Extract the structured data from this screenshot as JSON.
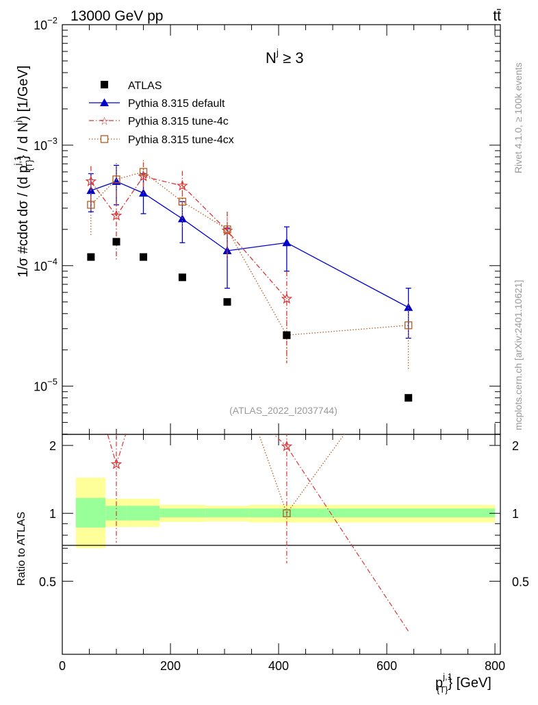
{
  "chart_data": {
    "type": "scatter",
    "header": {
      "left": "13000 GeV pp",
      "right": "tt̄"
    },
    "panel_label": {
      "text": "N",
      "superscript": "j",
      "condition": " ≥ 3"
    },
    "ylabel": {
      "prefix": "1/σ #cdot dσ / (d p",
      "sup": "j,1",
      "sub": "{T}",
      "suffix": "} / d N",
      "sup2": "j",
      "units": ") [1/GeV]"
    },
    "xlabel": {
      "base": "p",
      "sup": "j,1",
      "sub": "{T}",
      "units": "} [GeV]"
    },
    "ratio_ylabel": "Ratio to ATLAS",
    "side_text_upper": "Rivet 4.1.0, ≥ 100k events",
    "side_text_lower": "mcplots.cern.ch [arXiv:2401.10621]",
    "analysis_label": "(ATLAS_2022_I2037744)",
    "x_range": [
      0,
      810
    ],
    "y_range_log": [
      -5.4,
      -2
    ],
    "x_ticks": [
      0,
      200,
      400,
      600,
      800
    ],
    "y_ticks": [
      {
        "mantissa": "10",
        "exp": "−2",
        "value": 0.01
      },
      {
        "mantissa": "10",
        "exp": "−3",
        "value": 0.001
      },
      {
        "mantissa": "10",
        "exp": "−4",
        "value": 0.0001
      },
      {
        "mantissa": "10",
        "exp": "−5",
        "value": 1e-05
      }
    ],
    "ratio_range_log": [
      -0.625,
      0.35
    ],
    "ratio_ticks": [
      "0.5",
      "1",
      "2"
    ],
    "bins": [
      {
        "lo": 25,
        "hi": 80
      },
      {
        "lo": 80,
        "hi": 120
      },
      {
        "lo": 120,
        "hi": 180
      },
      {
        "lo": 180,
        "hi": 265
      },
      {
        "lo": 265,
        "hi": 345
      },
      {
        "lo": 345,
        "hi": 485
      },
      {
        "lo": 485,
        "hi": 800
      }
    ],
    "atlas": {
      "name": "ATLAS",
      "x": [
        53,
        100,
        150,
        222,
        305,
        415,
        640
      ],
      "y": [
        0.000118,
        0.000158,
        0.000118,
        8e-05,
        5e-05,
        2.65e-05,
        8e-06
      ]
    },
    "series": [
      {
        "name": "Pythia 8.315 default",
        "color": "#0000cc",
        "marker": "triangle",
        "dash": "",
        "x": [
          53,
          100,
          150,
          222,
          305,
          415,
          640
        ],
        "y": [
          0.00042,
          0.0005,
          0.0004,
          0.000245,
          0.000133,
          0.000155,
          4.5e-05
        ],
        "err_lo": [
          0.00028,
          0.00032,
          0.00027,
          0.000155,
          6.5e-05,
          9e-05,
          2.5e-05
        ],
        "err_hi": [
          0.00058,
          0.00068,
          0.00058,
          0.00034,
          0.000205,
          0.00021,
          6.5e-05
        ]
      },
      {
        "name": "Pythia 8.315 tune-4c",
        "color": "#dd3333",
        "marker": "star",
        "dash": "7,3,1.5,3",
        "x": [
          53,
          100,
          150,
          222,
          305,
          415,
          640
        ],
        "y": [
          0.0005,
          0.00026,
          0.00055,
          0.00046,
          0.000195,
          5.3e-05,
          null
        ],
        "err_lo": [
          0.00031,
          0.00011,
          0.0004,
          0.00031,
          0.00011,
          1.55e-05,
          null
        ],
        "err_hi": [
          0.00067,
          0.00041,
          0.00072,
          0.00061,
          0.00028,
          9e-05,
          null
        ],
        "ratio_offscale": [
          true,
          false,
          true,
          true,
          true,
          false,
          true
        ],
        "ratio_x": [
          100,
          415
        ],
        "ratio_y": [
          1.65,
          1.98
        ],
        "ratio_err_lo": [
          0.74,
          0.6
        ],
        "ratio_err_hi": [
          2.3,
          2.3
        ]
      },
      {
        "name": "Pythia 8.315 tune-4cx",
        "color": "#b35c1e",
        "marker": "open-square",
        "dash": "1.5,2.5",
        "x": [
          53,
          100,
          150,
          222,
          305,
          415,
          640
        ],
        "y": [
          0.00032,
          0.00052,
          0.0006,
          0.00034,
          0.0002,
          2.65e-05,
          3.2e-05
        ],
        "err_lo": [
          0.000175,
          0.00033,
          0.00045,
          0.00021,
          0.00012,
          1.55e-05,
          1.35e-05
        ],
        "err_hi": [
          0.00047,
          0.00071,
          0.00075,
          0.00047,
          0.00028,
          3.75e-05,
          5e-05
        ],
        "ratio_x": [
          415
        ],
        "ratio_y": [
          1.0
        ]
      }
    ],
    "ratio_bands": [
      {
        "inner": [
          0.865,
          1.17
        ],
        "outer": [
          0.7,
          1.44
        ]
      },
      {
        "inner": [
          0.93,
          1.08
        ],
        "outer": [
          0.87,
          1.16
        ]
      },
      {
        "inner": [
          0.93,
          1.08
        ],
        "outer": [
          0.87,
          1.16
        ]
      },
      {
        "inner": [
          0.96,
          1.05
        ],
        "outer": [
          0.915,
          1.09
        ]
      },
      {
        "inner": [
          0.96,
          1.05
        ],
        "outer": [
          0.92,
          1.08
        ]
      },
      {
        "inner": [
          0.96,
          1.05
        ],
        "outer": [
          0.91,
          1.09
        ]
      },
      {
        "inner": [
          0.96,
          1.05
        ],
        "outer": [
          0.91,
          1.09
        ]
      }
    ]
  }
}
